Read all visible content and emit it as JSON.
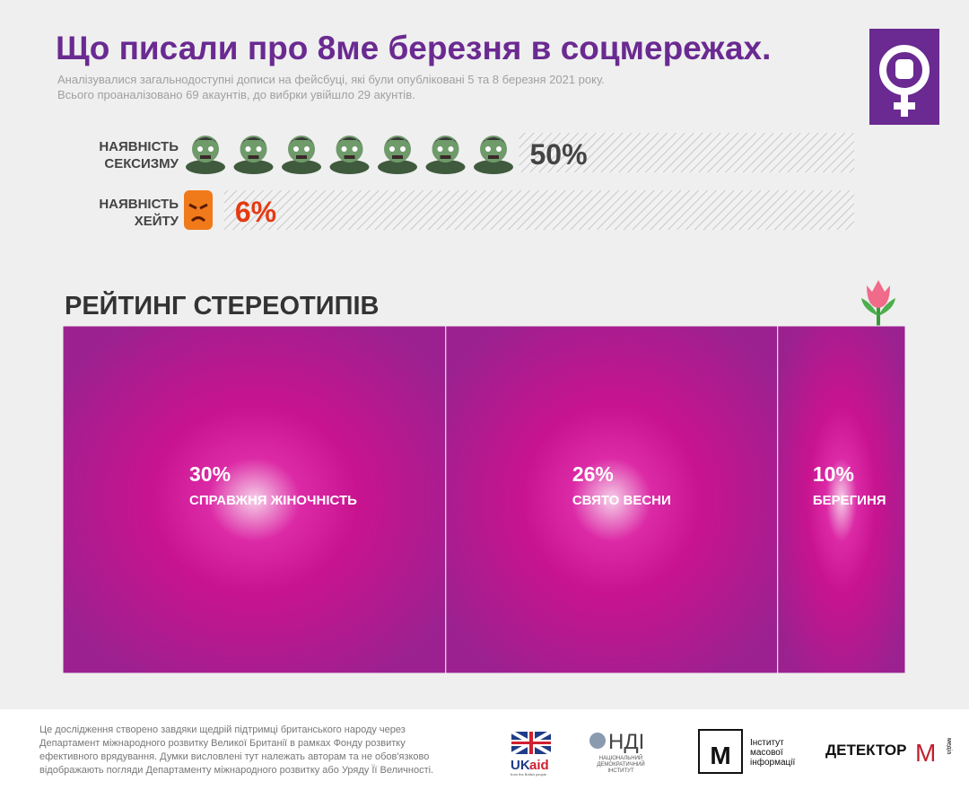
{
  "header": {
    "title": "Що писали про 8ме березня в соцмережах.",
    "subtitle_lines": [
      "Аналізувалися загальнодоступні дописи на фейсбуці, які були опубліковані 5 та 8 березня 2021 року.",
      "Всього проаналізовано 69 акаунтів, до вибрки увійшло 29 акунтів."
    ]
  },
  "chart_data": [
    {
      "type": "bar",
      "categories": [
        "НАЯВНІСТЬ СЕКСИЗМУ",
        "НАЯВНІСТЬ ХЕЙТУ"
      ],
      "values": [
        50,
        6
      ],
      "value_labels": [
        "50%",
        "6%"
      ],
      "label_colors": [
        "#444444",
        "#e53a12"
      ],
      "xlim": [
        0,
        100
      ]
    },
    {
      "type": "treemap",
      "title": "РЕЙТИНГ СТЕРЕОТИПІВ",
      "categories": [
        "СПРАВЖНЯ ЖІНОЧНІСТЬ",
        "СВЯТО ВЕСНИ",
        "БЕРЕГИНЯ"
      ],
      "values": [
        30,
        26,
        10
      ],
      "value_labels": [
        "30%",
        "26%",
        "10%"
      ]
    }
  ],
  "footer": {
    "text_lines": [
      "Це  дослідження створено завдяки щедрій підтримці британського народу через",
      "Департамент міжнародного розвитку Великої Британії в рамках Фонду розвитку",
      "ефективного врядування. Думки висловлені тут належать авторам та не обов'язково",
      "відображають погляди Департаменту міжнародного розвитку або Уряду Її Величності."
    ],
    "logos": {
      "ukaid_uk": "UK",
      "ukaid_aid": "aid",
      "ukaid_sub": "from the British people",
      "ndi": "НДІ",
      "ndi_sub1": "НАЦІОНАЛЬНИЙ",
      "ndi_sub2": "ДЕМОКРАТИЧНИЙ",
      "ndi_sub3": "ІНСТИТУТ",
      "imi_m": "М",
      "imi_1": "Інститут",
      "imi_2": "масової",
      "imi_3": "інформації",
      "detector": "ДЕТЕКТОР",
      "detector_m": "М",
      "detector_media": "медіа"
    }
  }
}
